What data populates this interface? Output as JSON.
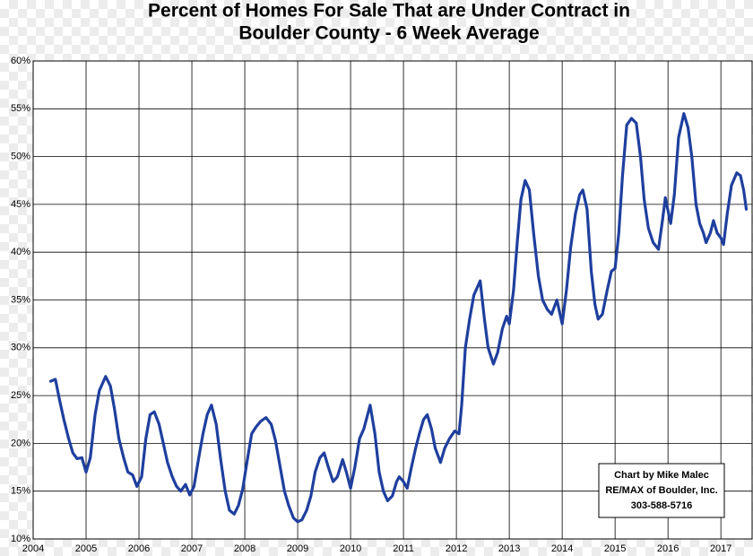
{
  "chart_data": {
    "type": "line",
    "title": [
      "Percent of Homes For Sale That are Under Contract  in",
      "Boulder County - 6 Week Average"
    ],
    "annotation": [
      "Chart by Mike Malec",
      "RE/MAX of Boulder, Inc.",
      "303-588-5716"
    ],
    "xlim": [
      2004,
      2017.59
    ],
    "xticks": [
      2004,
      2005,
      2006,
      2007,
      2008,
      2009,
      2010,
      2011,
      2012,
      2013,
      2014,
      2015,
      2016,
      2017
    ],
    "ylim": [
      10,
      60
    ],
    "yticks": [
      {
        "value": 10,
        "label": "10%"
      },
      {
        "value": 15,
        "label": "15%"
      },
      {
        "value": 20,
        "label": "20%"
      },
      {
        "value": 25,
        "label": "25%"
      },
      {
        "value": 30,
        "label": "30%"
      },
      {
        "value": 35,
        "label": "35%"
      },
      {
        "value": 40,
        "label": "40%"
      },
      {
        "value": 45,
        "label": "45%"
      },
      {
        "value": 50,
        "label": "50%"
      },
      {
        "value": 55,
        "label": "55%"
      },
      {
        "value": 60,
        "label": "60%"
      }
    ],
    "grid": true,
    "x": [
      2004.33,
      2004.42,
      2004.5,
      2004.58,
      2004.67,
      2004.75,
      2004.83,
      2004.92,
      2005.0,
      2005.08,
      2005.17,
      2005.25,
      2005.37,
      2005.46,
      2005.54,
      2005.62,
      2005.71,
      2005.79,
      2005.88,
      2005.96,
      2006.05,
      2006.13,
      2006.21,
      2006.29,
      2006.38,
      2006.46,
      2006.54,
      2006.63,
      2006.71,
      2006.79,
      2006.88,
      2006.96,
      2007.04,
      2007.13,
      2007.21,
      2007.29,
      2007.37,
      2007.46,
      2007.54,
      2007.63,
      2007.71,
      2007.8,
      2007.88,
      2007.96,
      2008.04,
      2008.13,
      2008.21,
      2008.3,
      2008.4,
      2008.5,
      2008.58,
      2008.67,
      2008.75,
      2008.83,
      2008.92,
      2009.0,
      2009.08,
      2009.17,
      2009.25,
      2009.33,
      2009.42,
      2009.5,
      2009.58,
      2009.67,
      2009.75,
      2009.85,
      2009.92,
      2010.0,
      2010.08,
      2010.17,
      2010.25,
      2010.37,
      2010.46,
      2010.54,
      2010.62,
      2010.7,
      2010.79,
      2010.87,
      2010.92,
      2011.0,
      2011.07,
      2011.15,
      2011.23,
      2011.3,
      2011.38,
      2011.45,
      2011.53,
      2011.6,
      2011.7,
      2011.78,
      2011.87,
      2011.97,
      2012.05,
      2012.1,
      2012.17,
      2012.25,
      2012.33,
      2012.45,
      2012.53,
      2012.6,
      2012.7,
      2012.78,
      2012.87,
      2012.95,
      2013.0,
      2013.08,
      2013.15,
      2013.22,
      2013.3,
      2013.38,
      2013.46,
      2013.55,
      2013.63,
      2013.72,
      2013.8,
      2013.9,
      2014.0,
      2014.08,
      2014.16,
      2014.25,
      2014.33,
      2014.39,
      2014.47,
      2014.55,
      2014.62,
      2014.68,
      2014.76,
      2014.85,
      2014.93,
      2015.0,
      2015.07,
      2015.14,
      2015.22,
      2015.31,
      2015.4,
      2015.48,
      2015.55,
      2015.63,
      2015.72,
      2015.82,
      2015.9,
      2015.95,
      2016.05,
      2016.12,
      2016.2,
      2016.3,
      2016.38,
      2016.45,
      2016.53,
      2016.6,
      2016.67,
      2016.72,
      2016.8,
      2016.86,
      2016.93,
      2017.0,
      2017.05,
      2017.12,
      2017.2,
      2017.3,
      2017.37,
      2017.43,
      2017.48
    ],
    "series": [
      {
        "color": "#1f3f9e",
        "values": [
          26.5,
          26.7,
          24.5,
          22.5,
          20.5,
          19,
          18.4,
          18.5,
          17,
          18.5,
          23,
          25.5,
          27,
          26,
          23.5,
          20.5,
          18.5,
          17,
          16.7,
          15.5,
          16.5,
          20.5,
          23,
          23.3,
          22,
          20,
          18,
          16.5,
          15.5,
          15,
          15.7,
          14.6,
          15.5,
          18.5,
          21,
          23,
          24,
          22,
          18.5,
          15,
          13,
          12.6,
          13.5,
          15.2,
          18,
          21,
          21.7,
          22.3,
          22.7,
          22,
          20.3,
          17.5,
          15,
          13.5,
          12.2,
          11.8,
          12,
          13,
          14.5,
          17,
          18.5,
          19,
          17.5,
          16,
          16.5,
          18.3,
          17,
          15.3,
          17.5,
          20.5,
          21.5,
          24,
          21,
          17,
          15,
          14,
          14.5,
          16,
          16.5,
          16,
          15.3,
          17.5,
          19.5,
          21,
          22.5,
          23,
          21.5,
          19.5,
          18,
          19.5,
          20.5,
          21.3,
          21,
          24,
          30,
          33,
          35.5,
          37,
          33,
          30,
          28.3,
          29.5,
          32,
          33.3,
          32.5,
          36,
          41,
          45.5,
          47.5,
          46.5,
          42,
          37.5,
          35,
          34,
          33.5,
          35,
          32.5,
          36,
          40.5,
          44,
          46,
          46.5,
          44.5,
          38,
          34.5,
          33,
          33.5,
          36,
          38,
          38.3,
          42,
          48,
          53.3,
          54,
          53.5,
          50,
          45.5,
          42.5,
          41,
          40.3,
          43.5,
          45.7,
          43,
          46,
          52,
          54.5,
          53,
          50,
          45,
          43,
          42,
          41,
          42,
          43.3,
          42,
          41.5,
          40.8,
          44,
          47,
          48.3,
          48,
          46.5,
          44.5
        ]
      }
    ]
  }
}
